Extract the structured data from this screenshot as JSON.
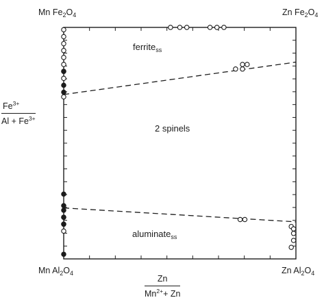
{
  "corners": {
    "top_left": {
      "base": "Mn Fe",
      "sub1": "2",
      "mid": "O",
      "sub2": "4"
    },
    "top_right": {
      "base": "Zn Fe",
      "sub1": "2",
      "mid": "O",
      "sub2": "4"
    },
    "bottom_left": {
      "base": "Mn Al",
      "sub1": "2",
      "mid": "O",
      "sub2": "4"
    },
    "bottom_right": {
      "base": "Zn Al",
      "sub1": "2",
      "mid": "O",
      "sub2": "4"
    }
  },
  "y_axis_fraction": {
    "numerator": {
      "text": "Fe",
      "sup": "3+"
    },
    "denominator": {
      "text": "Al + Fe",
      "sup": "3+"
    }
  },
  "x_axis_fraction": {
    "numerator": {
      "text": "Zn"
    },
    "denominator": {
      "text": "Mn",
      "sup": "2+",
      "tail": "+ Zn"
    }
  },
  "regions": {
    "ferrite": {
      "base": "ferrite",
      "sub": "ss"
    },
    "two_spinels": "2 spinels",
    "aluminate": {
      "base": "aluminate",
      "sub": "ss"
    }
  },
  "chart_data": {
    "type": "scatter",
    "x_quantity": "Zn/(Mn2+ + Zn)",
    "y_quantity": "Fe3+/(Al + Fe3+)",
    "xlim": [
      0,
      1
    ],
    "ylim": [
      0,
      1
    ],
    "series": [
      {
        "marker": "open-circle",
        "points": [
          [
            0.0,
            0.99
          ],
          [
            0.0,
            0.96
          ],
          [
            0.0,
            0.93
          ],
          [
            0.0,
            0.9
          ],
          [
            0.0,
            0.87
          ],
          [
            0.0,
            0.84
          ],
          [
            0.0,
            0.81
          ],
          [
            0.0,
            0.78
          ],
          [
            0.0,
            0.7
          ],
          [
            0.0,
            0.18
          ],
          [
            0.0,
            0.15
          ],
          [
            0.0,
            0.12
          ],
          [
            0.46,
            1.0
          ],
          [
            0.5,
            1.0
          ],
          [
            0.53,
            1.0
          ],
          [
            0.63,
            1.0
          ],
          [
            0.66,
            1.0
          ],
          [
            0.69,
            1.0
          ],
          [
            0.77,
            0.84
          ],
          [
            0.79,
            0.84
          ],
          [
            0.74,
            0.82
          ],
          [
            0.77,
            0.82
          ],
          [
            0.76,
            0.17
          ],
          [
            0.78,
            0.17
          ],
          [
            0.98,
            0.14
          ],
          [
            0.99,
            0.13
          ],
          [
            0.99,
            0.11
          ],
          [
            0.99,
            0.08
          ],
          [
            0.98,
            0.05
          ]
        ]
      },
      {
        "marker": "filled-circle",
        "points": [
          [
            0.0,
            0.81
          ],
          [
            0.0,
            0.75
          ],
          [
            0.0,
            0.72
          ],
          [
            0.0,
            0.28
          ],
          [
            0.0,
            0.23
          ],
          [
            0.0,
            0.21
          ],
          [
            0.0,
            0.18
          ],
          [
            0.0,
            0.15
          ],
          [
            0.0,
            0.02
          ]
        ]
      }
    ],
    "boundaries": [
      {
        "name": "ferrite solvus",
        "style": "dashed",
        "points": [
          [
            0.0,
            0.71
          ],
          [
            1.0,
            0.85
          ]
        ]
      },
      {
        "name": "aluminate solvus",
        "style": "dashed",
        "points": [
          [
            0.0,
            0.22
          ],
          [
            1.0,
            0.16
          ]
        ]
      }
    ],
    "ticks": {
      "x_count": 9,
      "y_count": 18
    },
    "grid": false
  }
}
